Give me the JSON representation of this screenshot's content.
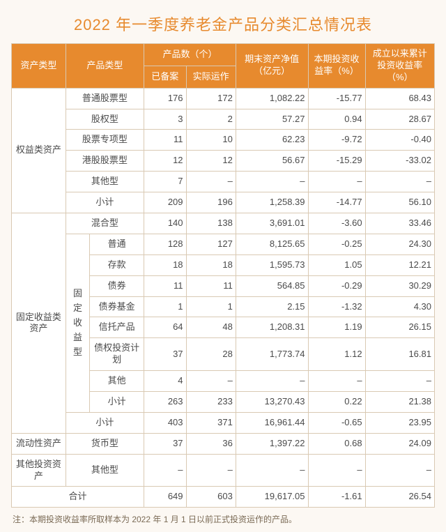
{
  "title": "2022 年一季度养老金产品分类汇总情况表",
  "colors": {
    "accent": "#e78a2e",
    "header_text": "#ffffff",
    "cell_bg": "#ffffff",
    "cell_text": "#4a4a4a",
    "page_bg": "#fcf8f3",
    "border": "#d9c9b3",
    "note_text": "#7a6a55"
  },
  "headers": {
    "asset_type": "资产类型",
    "product_type": "产品类型",
    "count_group": "产品数（个）",
    "count_filed": "已备案",
    "count_running": "实际运作",
    "nav": "期末资产净值（亿元）",
    "period_yield": "本期投资收益率（%）",
    "cum_yield": "成立以来累计投资收益率（%）"
  },
  "groups": {
    "equity": "权益类资产",
    "fixed": "固定收益类资产",
    "fixed_sub": "固定收益型",
    "liquid": "流动性资产",
    "other": "其他投资资产",
    "total": "合计"
  },
  "rows": {
    "eq_common": {
      "name": "普通股票型",
      "filed": "176",
      "run": "172",
      "nav": "1,082.22",
      "py": "-15.77",
      "cy": "68.43"
    },
    "eq_equity": {
      "name": "股权型",
      "filed": "3",
      "run": "2",
      "nav": "57.27",
      "py": "0.94",
      "cy": "28.67"
    },
    "eq_special": {
      "name": "股票专项型",
      "filed": "11",
      "run": "10",
      "nav": "62.23",
      "py": "-9.72",
      "cy": "-0.40"
    },
    "eq_hk": {
      "name": "港股股票型",
      "filed": "12",
      "run": "12",
      "nav": "56.67",
      "py": "-15.29",
      "cy": "-33.02"
    },
    "eq_other": {
      "name": "其他型",
      "filed": "7",
      "run": "–",
      "nav": "–",
      "py": "–",
      "cy": "–"
    },
    "eq_sub": {
      "name": "小计",
      "filed": "209",
      "run": "196",
      "nav": "1,258.39",
      "py": "-14.77",
      "cy": "56.10"
    },
    "fx_mixed": {
      "name": "混合型",
      "filed": "140",
      "run": "138",
      "nav": "3,691.01",
      "py": "-3.60",
      "cy": "33.46"
    },
    "fi_common": {
      "name": "普通",
      "filed": "128",
      "run": "127",
      "nav": "8,125.65",
      "py": "-0.25",
      "cy": "24.30"
    },
    "fi_deposit": {
      "name": "存款",
      "filed": "18",
      "run": "18",
      "nav": "1,595.73",
      "py": "1.05",
      "cy": "12.21"
    },
    "fi_bond": {
      "name": "债券",
      "filed": "11",
      "run": "11",
      "nav": "564.85",
      "py": "-0.29",
      "cy": "30.29"
    },
    "fi_bfund": {
      "name": "债券基金",
      "filed": "1",
      "run": "1",
      "nav": "2.15",
      "py": "-1.32",
      "cy": "4.30"
    },
    "fi_trust": {
      "name": "信托产品",
      "filed": "64",
      "run": "48",
      "nav": "1,208.31",
      "py": "1.19",
      "cy": "26.15"
    },
    "fi_plan": {
      "name": "债权投资计划",
      "filed": "37",
      "run": "28",
      "nav": "1,773.74",
      "py": "1.12",
      "cy": "16.81"
    },
    "fi_other": {
      "name": "其他",
      "filed": "4",
      "run": "–",
      "nav": "–",
      "py": "–",
      "cy": "–"
    },
    "fi_sub": {
      "name": "小计",
      "filed": "263",
      "run": "233",
      "nav": "13,270.43",
      "py": "0.22",
      "cy": "21.38"
    },
    "fx_sub": {
      "name": "小计",
      "filed": "403",
      "run": "371",
      "nav": "16,961.44",
      "py": "-0.65",
      "cy": "23.95"
    },
    "lq_money": {
      "name": "货币型",
      "filed": "37",
      "run": "36",
      "nav": "1,397.22",
      "py": "0.68",
      "cy": "24.09"
    },
    "ot_other": {
      "name": "其他型",
      "filed": "–",
      "run": "–",
      "nav": "–",
      "py": "–",
      "cy": "–"
    },
    "total": {
      "filed": "649",
      "run": "603",
      "nav": "19,617.05",
      "py": "-1.61",
      "cy": "26.54"
    }
  },
  "note": "注：本期投资收益率所取样本为 2022 年 1 月 1 日以前正式投资运作的产品。"
}
